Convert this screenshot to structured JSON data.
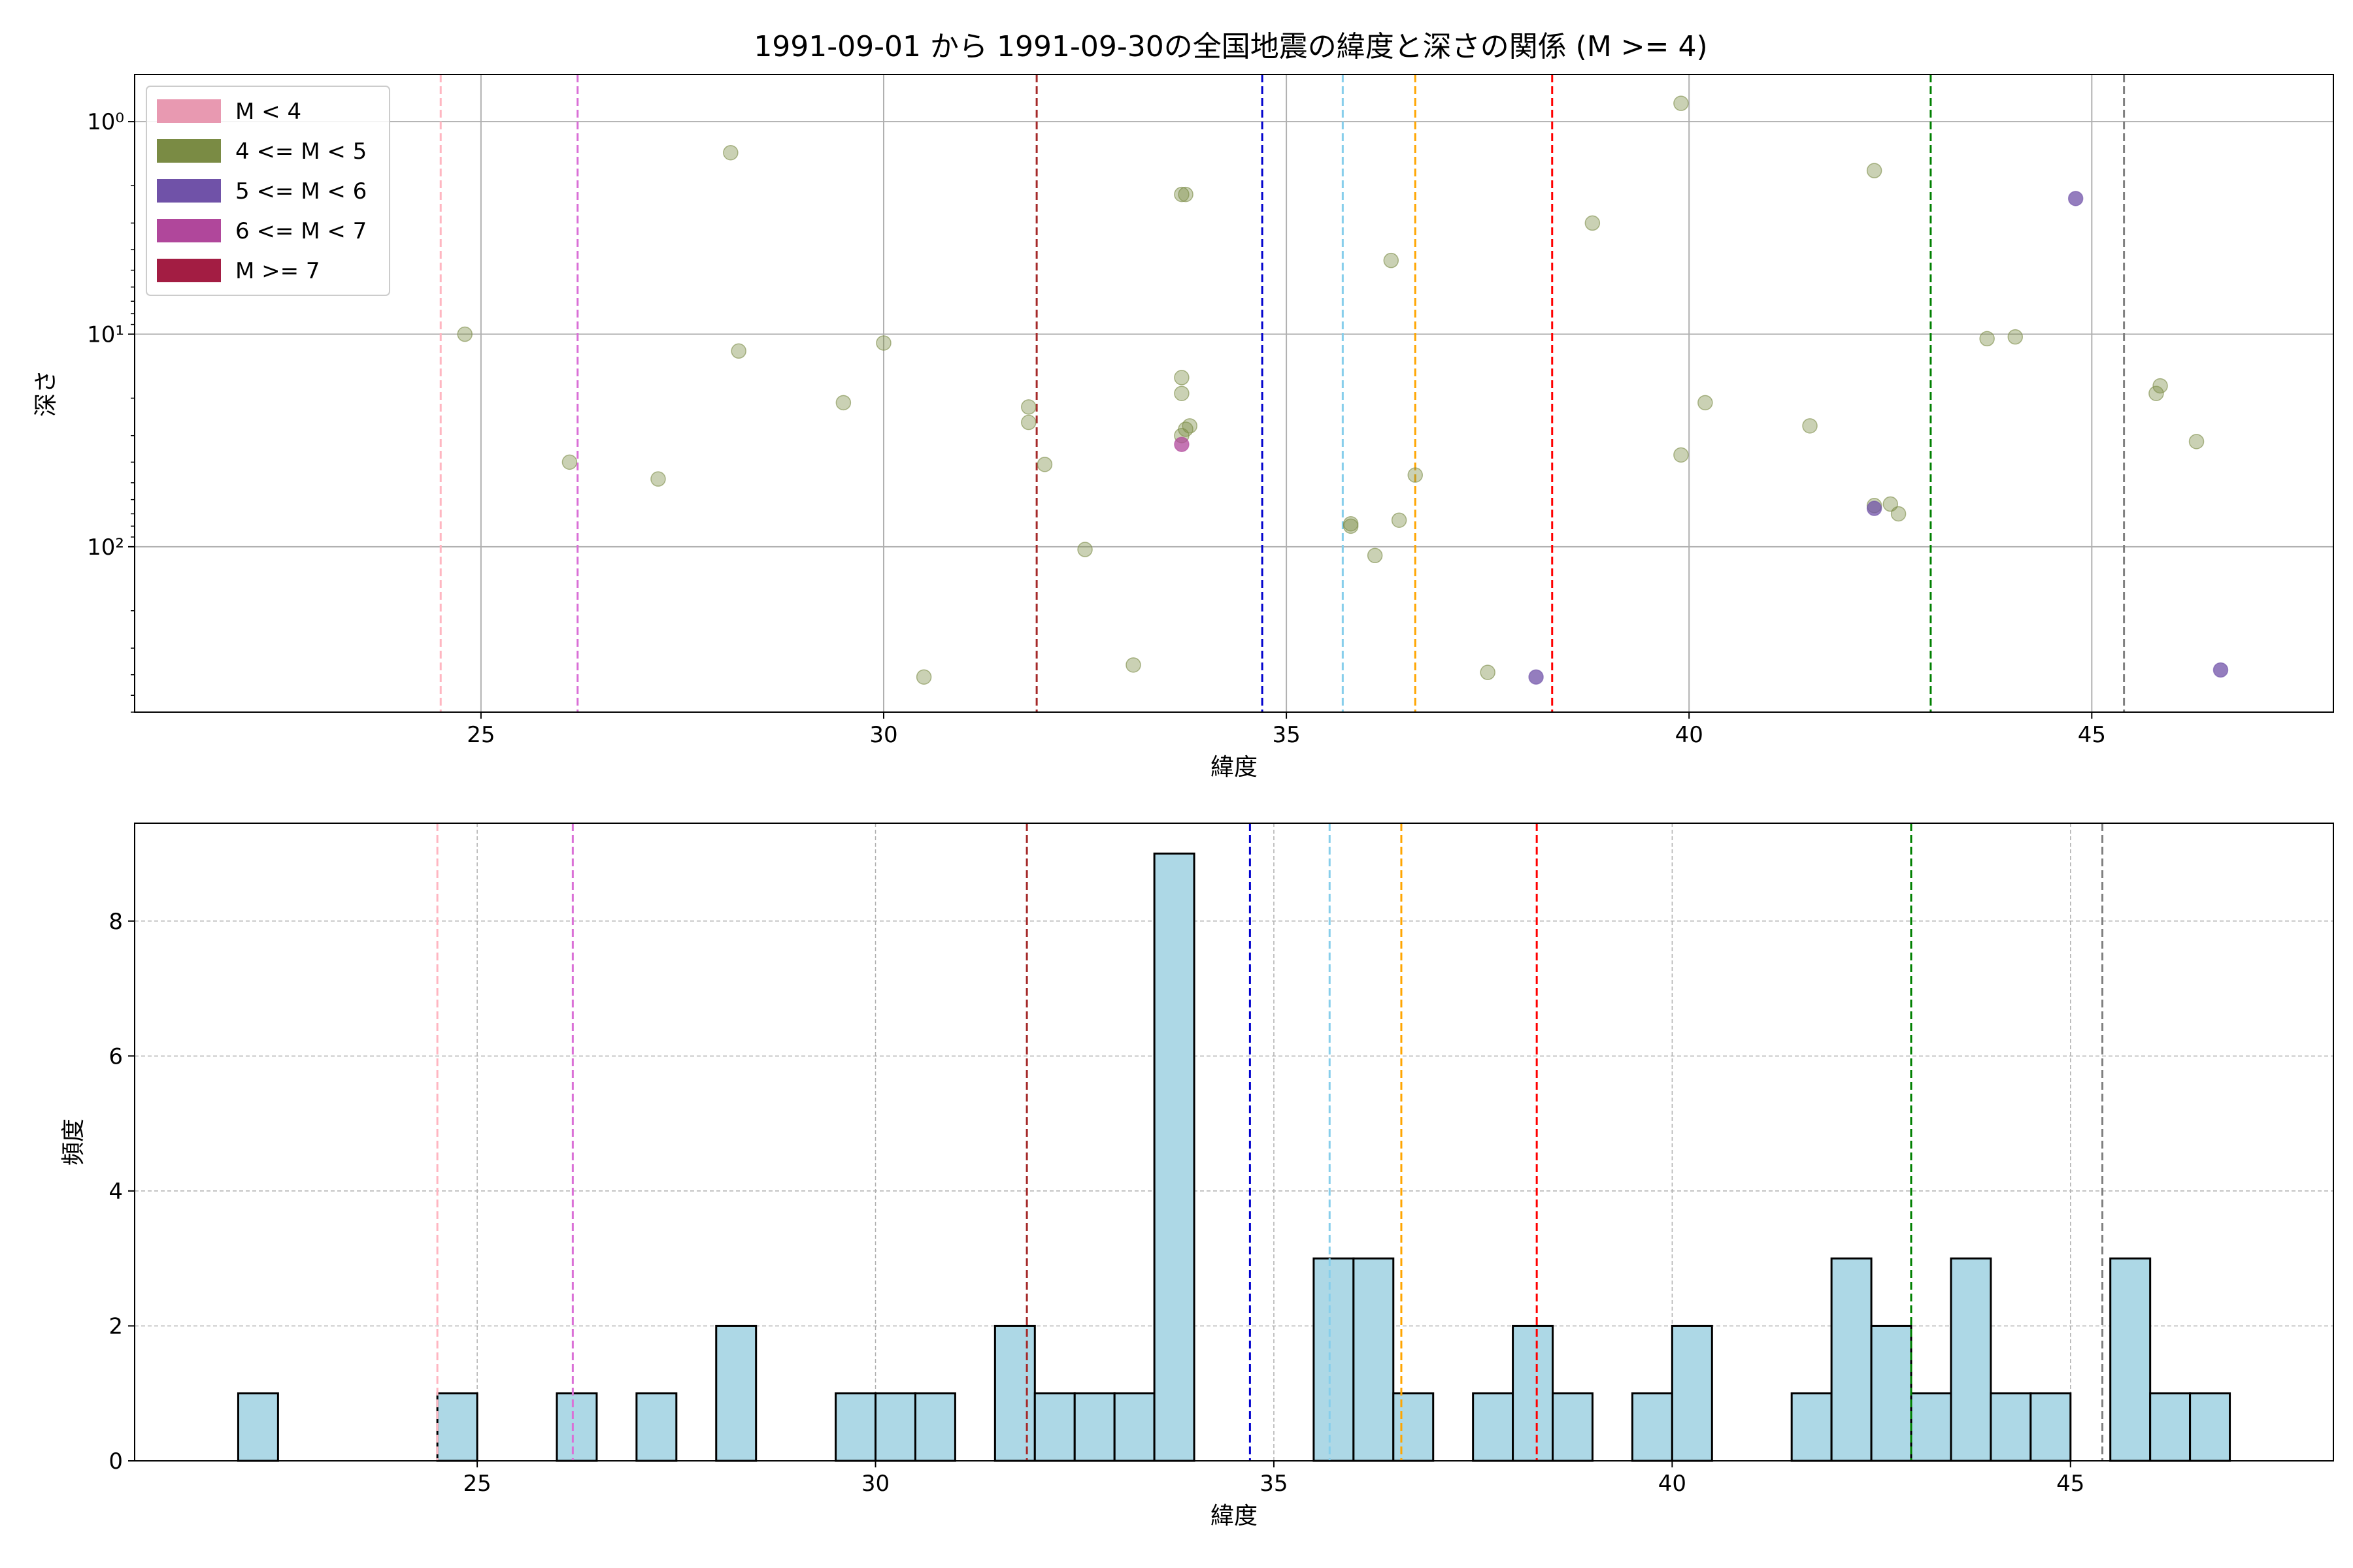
{
  "figure_title": "1991-09-01 から 1991-09-30の全国地震の緯度と深さの関係 (M >= 4)",
  "colors": {
    "M<4": "#e899b1",
    "4<=M<5": "#7a8b44",
    "5<=M<6": "#7052a8",
    "6<=M<7": "#b0479b",
    "M>=7": "#a31d43",
    "hist_fill": "#add8e6"
  },
  "chart_data": [
    {
      "type": "scatter",
      "title": "1991-09-01 から 1991-09-30の全国地震の緯度と深さの関係 (M >= 4)",
      "xlabel": "緯度",
      "ylabel": "深さ",
      "xlim": [
        20.7,
        48.0
      ],
      "ylim": [
        600,
        0.6
      ],
      "yscale": "log",
      "y_inverted": true,
      "grid": true,
      "xticks": [
        25,
        30,
        35,
        40,
        45
      ],
      "yticks": [
        {
          "value": 1,
          "label": "10⁰"
        },
        {
          "value": 10,
          "label": "10¹"
        },
        {
          "value": 100,
          "label": "10²"
        }
      ],
      "legend": {
        "position": "top-left",
        "entries": [
          {
            "label": "M < 4",
            "color_key": "M<4"
          },
          {
            "label": "4 <= M < 5",
            "color_key": "4<=M<5"
          },
          {
            "label": "5 <= M < 6",
            "color_key": "5<=M<6"
          },
          {
            "label": "6 <= M < 7",
            "color_key": "6<=M<7"
          },
          {
            "label": "M >= 7",
            "color_key": "M>=7"
          }
        ]
      },
      "vlines": [
        {
          "x": 24.5,
          "color": "#ffb6c1"
        },
        {
          "x": 26.2,
          "color": "#da70d6"
        },
        {
          "x": 31.9,
          "color": "#a52a2a"
        },
        {
          "x": 34.7,
          "color": "#0000cd"
        },
        {
          "x": 35.7,
          "color": "#87ceeb"
        },
        {
          "x": 36.6,
          "color": "#ffa500"
        },
        {
          "x": 38.3,
          "color": "#ff0000"
        },
        {
          "x": 43.0,
          "color": "#008000"
        },
        {
          "x": 45.4,
          "color": "#808080"
        }
      ],
      "series": [
        {
          "name": "4 <= M < 5",
          "color_key": "4<=M<5",
          "points": [
            [
              24.8,
              10
            ],
            [
              26.1,
              40
            ],
            [
              27.2,
              48
            ],
            [
              28.1,
              1.4
            ],
            [
              28.2,
              12
            ],
            [
              29.5,
              21
            ],
            [
              30.0,
              11
            ],
            [
              30.5,
              410
            ],
            [
              31.8,
              22
            ],
            [
              31.8,
              26
            ],
            [
              32.0,
              41
            ],
            [
              32.5,
              103
            ],
            [
              33.1,
              360
            ],
            [
              33.7,
              2.2
            ],
            [
              33.75,
              2.2
            ],
            [
              33.7,
              16
            ],
            [
              33.7,
              19
            ],
            [
              33.7,
              30
            ],
            [
              33.75,
              28
            ],
            [
              33.8,
              27
            ],
            [
              35.8,
              80
            ],
            [
              35.8,
              78
            ],
            [
              36.1,
              110
            ],
            [
              36.3,
              4.5
            ],
            [
              36.4,
              75
            ],
            [
              36.6,
              46
            ],
            [
              37.5,
              390
            ],
            [
              38.8,
              3.0
            ],
            [
              39.9,
              0.82
            ],
            [
              39.9,
              37
            ],
            [
              40.2,
              21
            ],
            [
              41.5,
              27
            ],
            [
              42.3,
              1.7
            ],
            [
              42.3,
              64
            ],
            [
              42.5,
              63
            ],
            [
              42.6,
              70
            ],
            [
              43.7,
              10.5
            ],
            [
              44.05,
              10.3
            ],
            [
              45.8,
              19
            ],
            [
              45.85,
              17.5
            ],
            [
              46.3,
              32
            ]
          ]
        },
        {
          "name": "5 <= M < 6",
          "color_key": "5<=M<6",
          "points": [
            [
              44.8,
              2.3
            ],
            [
              38.1,
              410
            ],
            [
              42.3,
              66
            ],
            [
              46.6,
              380
            ]
          ]
        },
        {
          "name": "6 <= M < 7",
          "color_key": "6<=M<7",
          "points": [
            [
              33.7,
              33
            ]
          ]
        }
      ]
    },
    {
      "type": "bar",
      "xlabel": "緯度",
      "ylabel": "頻度",
      "xlim": [
        20.7,
        48.3
      ],
      "ylim": [
        0,
        9.45
      ],
      "grid": true,
      "xticks": [
        25,
        30,
        35,
        40,
        45
      ],
      "yticks": [
        0,
        2,
        4,
        6,
        8
      ],
      "bin_width": 0.5,
      "bins": [
        {
          "x0": 22.0,
          "count": 1
        },
        {
          "x0": 24.5,
          "count": 1
        },
        {
          "x0": 26.0,
          "count": 1
        },
        {
          "x0": 27.0,
          "count": 1
        },
        {
          "x0": 28.0,
          "count": 2
        },
        {
          "x0": 29.5,
          "count": 1
        },
        {
          "x0": 30.0,
          "count": 1
        },
        {
          "x0": 30.5,
          "count": 1
        },
        {
          "x0": 31.5,
          "count": 2
        },
        {
          "x0": 32.0,
          "count": 1
        },
        {
          "x0": 32.5,
          "count": 1
        },
        {
          "x0": 33.0,
          "count": 1
        },
        {
          "x0": 33.5,
          "count": 9
        },
        {
          "x0": 35.5,
          "count": 3
        },
        {
          "x0": 36.0,
          "count": 3
        },
        {
          "x0": 36.5,
          "count": 1
        },
        {
          "x0": 37.5,
          "count": 1
        },
        {
          "x0": 38.0,
          "count": 2
        },
        {
          "x0": 38.5,
          "count": 1
        },
        {
          "x0": 39.5,
          "count": 1
        },
        {
          "x0": 40.0,
          "count": 2
        },
        {
          "x0": 41.5,
          "count": 1
        },
        {
          "x0": 42.0,
          "count": 3
        },
        {
          "x0": 42.5,
          "count": 2
        },
        {
          "x0": 43.0,
          "count": 1
        },
        {
          "x0": 43.5,
          "count": 3
        },
        {
          "x0": 44.0,
          "count": 1
        },
        {
          "x0": 44.5,
          "count": 1
        },
        {
          "x0": 45.5,
          "count": 3
        },
        {
          "x0": 46.0,
          "count": 1
        },
        {
          "x0": 46.5,
          "count": 1
        }
      ],
      "vlines": [
        {
          "x": 24.5,
          "color": "#ffb6c1"
        },
        {
          "x": 26.2,
          "color": "#da70d6"
        },
        {
          "x": 31.9,
          "color": "#a52a2a"
        },
        {
          "x": 34.7,
          "color": "#0000cd"
        },
        {
          "x": 35.7,
          "color": "#87ceeb"
        },
        {
          "x": 36.6,
          "color": "#ffa500"
        },
        {
          "x": 38.3,
          "color": "#ff0000"
        },
        {
          "x": 43.0,
          "color": "#008000"
        },
        {
          "x": 45.4,
          "color": "#808080"
        }
      ]
    }
  ]
}
